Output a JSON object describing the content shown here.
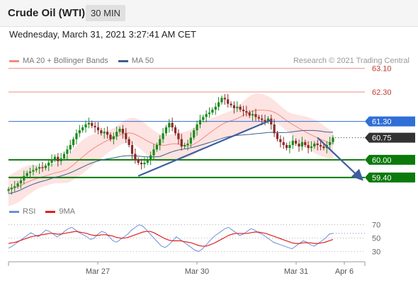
{
  "header": {
    "title": "Crude Oil (WTI)",
    "interval": "30 MIN",
    "datetime": "Wednesday, March 31, 2021 3:27:41 AM CET"
  },
  "legend": {
    "bollinger": "MA 20 + Bollinger Bands",
    "ma50": "MA 50",
    "rsi": "RSI",
    "rsi_ma": "9MA",
    "credit": "Research © 2021 Trading Central"
  },
  "colors": {
    "candle_up": "#1a8a1a",
    "candle_down": "#8a2a2a",
    "bollinger": "#f28b82",
    "bollinger_fill": "#fde3e1",
    "ma50": "#3e5e8e",
    "resistance": "#f28b82",
    "pivot": "#2f6fd6",
    "support": "#0b7a0b",
    "current": "#333333",
    "rsi": "#6b8fd8",
    "rsi_ma": "#e02020"
  },
  "chart_data": [
    {
      "type": "candlestick",
      "price_range": [
        58.7,
        63.5
      ],
      "x_labels": [
        "Mar 27",
        "Mar 30",
        "Mar 31",
        "Apr 6"
      ],
      "grid": false,
      "levels": [
        {
          "value": 63.1,
          "label": "63.10",
          "kind": "resistance"
        },
        {
          "value": 62.3,
          "label": "62.30",
          "kind": "resistance"
        },
        {
          "value": 61.3,
          "label": "61.30",
          "kind": "pivot"
        },
        {
          "value": 60.75,
          "label": "60.75",
          "kind": "current"
        },
        {
          "value": 60.0,
          "label": "60.00",
          "kind": "support"
        },
        {
          "value": 59.4,
          "label": "59.40",
          "kind": "support"
        }
      ],
      "close_series": [
        59.0,
        59.05,
        59.1,
        59.2,
        59.3,
        59.45,
        59.55,
        59.6,
        59.65,
        59.7,
        59.75,
        59.72,
        59.8,
        59.9,
        60.0,
        60.1,
        59.95,
        60.05,
        60.2,
        60.35,
        60.5,
        60.7,
        60.9,
        61.0,
        61.1,
        61.2,
        61.25,
        61.15,
        61.1,
        61.0,
        60.9,
        60.95,
        60.85,
        60.7,
        60.8,
        60.95,
        61.05,
        60.9,
        60.7,
        60.5,
        60.2,
        60.0,
        59.9,
        59.85,
        59.9,
        60.0,
        60.15,
        60.35,
        60.5,
        60.7,
        60.9,
        61.1,
        61.25,
        61.1,
        60.9,
        60.7,
        60.45,
        60.5,
        60.55,
        60.75,
        61.0,
        61.2,
        61.35,
        61.45,
        61.55,
        61.6,
        61.7,
        61.8,
        61.95,
        62.1,
        62.05,
        61.9,
        61.85,
        61.75,
        61.8,
        61.7,
        61.65,
        61.6,
        61.5,
        61.55,
        61.45,
        61.4,
        61.35,
        61.3,
        61.4,
        61.2,
        60.9,
        60.7,
        60.6,
        60.5,
        60.4,
        60.5,
        60.65,
        60.55,
        60.45,
        60.6,
        60.5,
        60.4,
        60.45,
        60.55,
        60.5,
        60.45,
        60.4,
        60.5,
        60.6,
        60.75
      ],
      "bollinger_halfwidth": 0.45,
      "trendlines": [
        {
          "from_index": 42,
          "from_value": 59.45,
          "to_index": 85,
          "to_value": 61.35
        },
        {
          "from_index": 100,
          "from_value": 60.75,
          "to_index": 108,
          "to_value": 59.5
        }
      ]
    },
    {
      "type": "line",
      "name": "RSI",
      "y_range": [
        20,
        78
      ],
      "y_ticks": [
        70,
        50,
        30
      ],
      "series": [
        {
          "name": "RSI",
          "values": [
            35,
            38,
            42,
            46,
            50,
            54,
            58,
            55,
            52,
            57,
            62,
            60,
            56,
            52,
            55,
            60,
            64,
            66,
            62,
            58,
            55,
            52,
            48,
            50,
            56,
            60,
            58,
            52,
            46,
            44,
            48,
            52,
            56,
            62,
            66,
            70,
            68,
            62,
            56,
            50,
            44,
            38,
            36,
            40,
            46,
            52,
            48,
            44,
            40,
            36,
            32,
            30,
            34,
            40,
            46,
            52,
            56,
            60,
            64,
            66,
            62,
            58,
            54,
            56,
            60,
            64,
            62,
            58,
            56,
            52,
            48,
            44,
            42,
            40,
            38,
            36,
            34,
            38,
            42,
            46,
            44,
            40,
            38,
            42,
            46,
            50,
            56,
            57
          ]
        },
        {
          "name": "9MA",
          "values": [
            42,
            43,
            44,
            46,
            48,
            50,
            52,
            53,
            54,
            55,
            56,
            57,
            57,
            56,
            56,
            57,
            58,
            59,
            60,
            59,
            58,
            57,
            55,
            54,
            54,
            55,
            55,
            54,
            53,
            51,
            50,
            50,
            51,
            53,
            55,
            57,
            59,
            60,
            60,
            58,
            55,
            52,
            49,
            47,
            46,
            46,
            46,
            45,
            44,
            43,
            41,
            39,
            38,
            38,
            40,
            42,
            45,
            48,
            51,
            54,
            56,
            57,
            57,
            57,
            57,
            58,
            59,
            59,
            58,
            57,
            55,
            53,
            51,
            49,
            47,
            45,
            43,
            42,
            42,
            43,
            43,
            43,
            42,
            42,
            43,
            44,
            46,
            48
          ]
        }
      ]
    }
  ]
}
